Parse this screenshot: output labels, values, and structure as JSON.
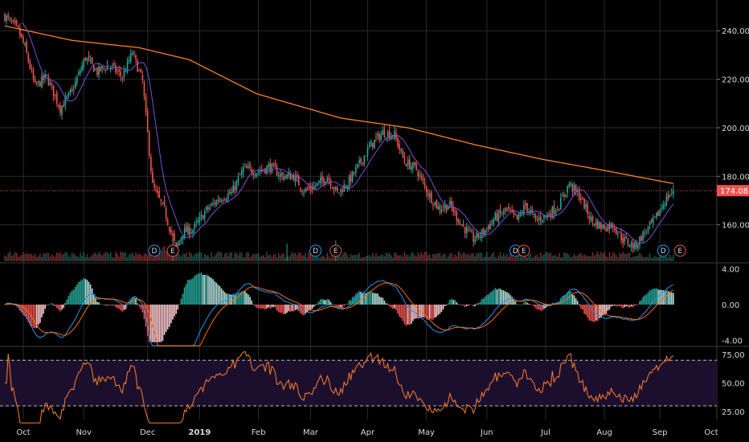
{
  "colors": {
    "background": "#000000",
    "grid": "#2a2a2a",
    "up": "#26a69a",
    "down": "#ef5350",
    "sma_long": "#ff7f2a",
    "sma_short": "#7b4fd8",
    "macd_line": "#2196f3",
    "signal_line": "#ff6d00",
    "rsi_line": "#ff7f2a",
    "rsi_band": "#1c0f2e",
    "price_tag": "#ef5350",
    "dividend": "#2196f3",
    "earnings": "#ef5350"
  },
  "chart_data": [
    {
      "type": "candlestick",
      "panel": "price",
      "y_ticks": [
        "240.00",
        "220.00",
        "200.00",
        "180.00",
        "160.00"
      ],
      "ylim": [
        145,
        252
      ],
      "last_price": 174.08,
      "last_price_label": "174.08",
      "x_labels": [
        "Oct",
        "Nov",
        "Dec",
        "2019",
        "Feb",
        "Mar",
        "Apr",
        "May",
        "Jun",
        "Jul",
        "Aug",
        "Sep",
        "Oct"
      ],
      "anchors": [
        {
          "d": 0,
          "v": 246
        },
        {
          "d": 8,
          "v": 240
        },
        {
          "d": 12,
          "v": 233
        },
        {
          "d": 18,
          "v": 217
        },
        {
          "d": 25,
          "v": 221
        },
        {
          "d": 33,
          "v": 208
        },
        {
          "d": 40,
          "v": 215
        },
        {
          "d": 48,
          "v": 229
        },
        {
          "d": 55,
          "v": 223
        },
        {
          "d": 62,
          "v": 226
        },
        {
          "d": 70,
          "v": 221
        },
        {
          "d": 76,
          "v": 231
        },
        {
          "d": 82,
          "v": 219
        },
        {
          "d": 88,
          "v": 176
        },
        {
          "d": 95,
          "v": 166
        },
        {
          "d": 102,
          "v": 150
        },
        {
          "d": 106,
          "v": 157
        },
        {
          "d": 112,
          "v": 158
        },
        {
          "d": 120,
          "v": 166
        },
        {
          "d": 128,
          "v": 171
        },
        {
          "d": 135,
          "v": 173
        },
        {
          "d": 142,
          "v": 183
        },
        {
          "d": 150,
          "v": 182
        },
        {
          "d": 158,
          "v": 184
        },
        {
          "d": 165,
          "v": 180
        },
        {
          "d": 172,
          "v": 180
        },
        {
          "d": 178,
          "v": 174
        },
        {
          "d": 185,
          "v": 176
        },
        {
          "d": 192,
          "v": 180
        },
        {
          "d": 198,
          "v": 173
        },
        {
          "d": 205,
          "v": 178
        },
        {
          "d": 212,
          "v": 186
        },
        {
          "d": 218,
          "v": 193
        },
        {
          "d": 225,
          "v": 198
        },
        {
          "d": 232,
          "v": 197
        },
        {
          "d": 238,
          "v": 186
        },
        {
          "d": 245,
          "v": 183
        },
        {
          "d": 252,
          "v": 173
        },
        {
          "d": 258,
          "v": 167
        },
        {
          "d": 265,
          "v": 168
        },
        {
          "d": 272,
          "v": 160
        },
        {
          "d": 279,
          "v": 154
        },
        {
          "d": 285,
          "v": 157
        },
        {
          "d": 292,
          "v": 163
        },
        {
          "d": 299,
          "v": 166
        },
        {
          "d": 305,
          "v": 162
        },
        {
          "d": 310,
          "v": 168
        },
        {
          "d": 316,
          "v": 162
        },
        {
          "d": 323,
          "v": 164
        },
        {
          "d": 330,
          "v": 168
        },
        {
          "d": 336,
          "v": 177
        },
        {
          "d": 343,
          "v": 171
        },
        {
          "d": 349,
          "v": 162
        },
        {
          "d": 356,
          "v": 159
        },
        {
          "d": 362,
          "v": 160
        },
        {
          "d": 368,
          "v": 154
        },
        {
          "d": 375,
          "v": 151
        },
        {
          "d": 380,
          "v": 156
        },
        {
          "d": 387,
          "v": 162
        },
        {
          "d": 393,
          "v": 170
        },
        {
          "d": 398,
          "v": 174
        }
      ],
      "sma_long_anchors": [
        {
          "d": 0,
          "v": 242
        },
        {
          "d": 40,
          "v": 236
        },
        {
          "d": 80,
          "v": 233
        },
        {
          "d": 110,
          "v": 228
        },
        {
          "d": 150,
          "v": 214
        },
        {
          "d": 200,
          "v": 204
        },
        {
          "d": 240,
          "v": 200
        },
        {
          "d": 280,
          "v": 193
        },
        {
          "d": 320,
          "v": 187
        },
        {
          "d": 360,
          "v": 182
        },
        {
          "d": 398,
          "v": 177
        }
      ],
      "events": [
        {
          "d": 89,
          "label": "D"
        },
        {
          "d": 100,
          "label": "E"
        },
        {
          "d": 185,
          "label": "D"
        },
        {
          "d": 197,
          "label": "E"
        },
        {
          "d": 304,
          "label": "D"
        },
        {
          "d": 309,
          "label": "E"
        },
        {
          "d": 392,
          "label": "D"
        },
        {
          "d": 402,
          "label": "E"
        }
      ]
    },
    {
      "type": "bar+line",
      "panel": "macd",
      "y_ticks": [
        "4.00",
        "0.00",
        "-4.00"
      ],
      "ylim": [
        -4.4,
        4.4
      ],
      "series": [
        {
          "name": "",
          "kind": "histogram"
        },
        {
          "name": "",
          "kind": "line",
          "color": "#2196f3"
        },
        {
          "name": "",
          "kind": "line",
          "color": "#ff6d00"
        }
      ]
    },
    {
      "type": "line",
      "panel": "rsi",
      "y_ticks": [
        "75.00",
        "50.00",
        "25.00"
      ],
      "ylim": [
        18,
        80
      ],
      "bands": [
        30,
        70
      ]
    }
  ]
}
